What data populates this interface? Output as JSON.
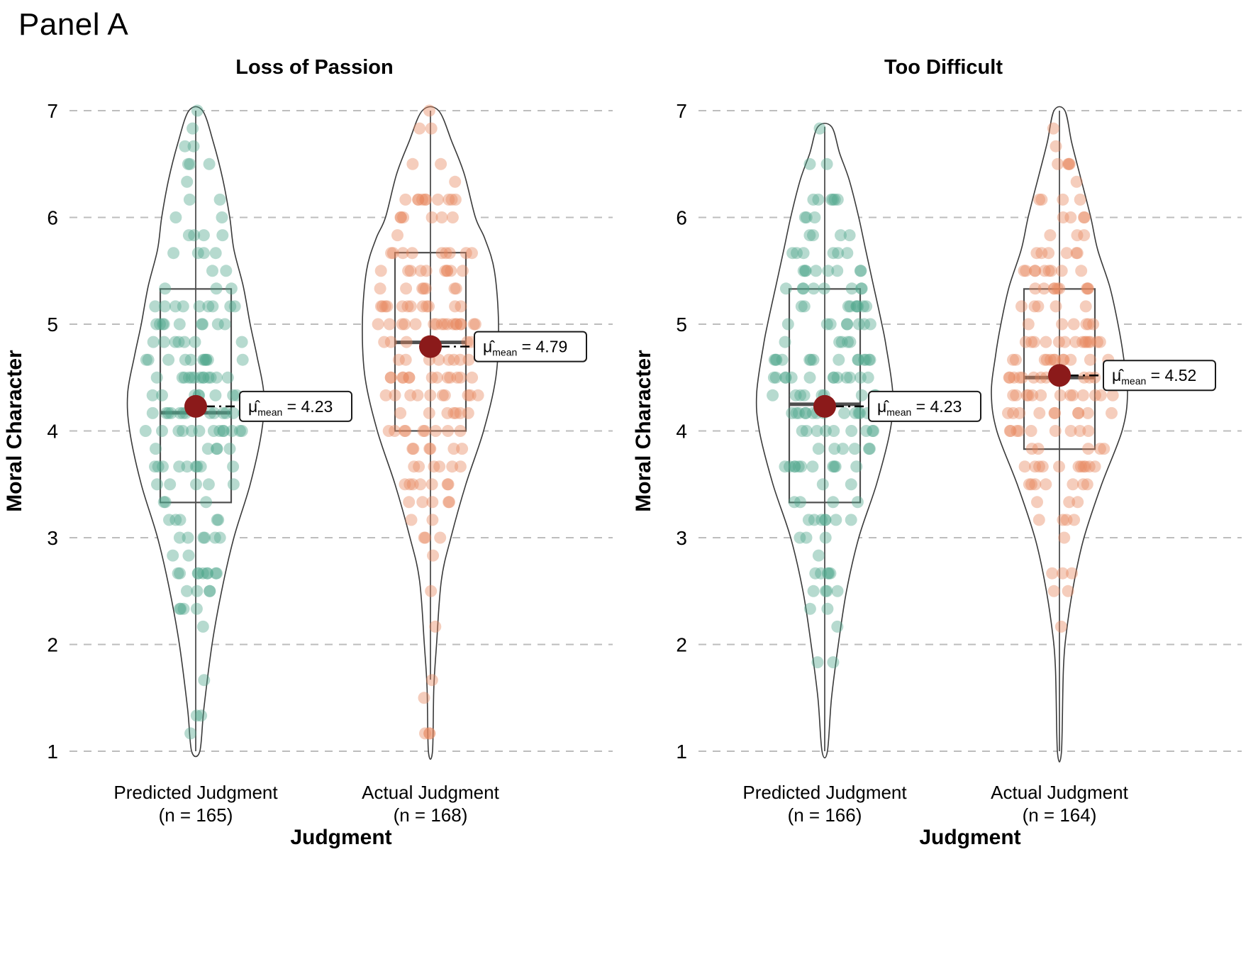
{
  "chart_data": {
    "type": "violin",
    "title": "Panel A",
    "xlabel": "Judgment",
    "ylabel": "Moral Character",
    "ylim": [
      1,
      7
    ],
    "yticks": [
      1,
      2,
      3,
      4,
      5,
      6,
      7
    ],
    "grid": "dashed-horizontal",
    "legend": "none",
    "mean_color": "#8b1a1a",
    "style": {
      "violin_stroke": "#3a3a3a",
      "box_stroke": "#4f4f4f",
      "grid_color": "#bdbdbd",
      "label_box_border": "#1a1a1a",
      "point_opacity": 0.42,
      "point_radius": 8.5
    },
    "panels": [
      {
        "title": "Loss of Passion",
        "groups": [
          {
            "label": "Predicted Judgment",
            "n_label": "(n = 165)",
            "n": 165,
            "color": "#52a68c",
            "mean": 4.23,
            "mean_label": {
              "mu": "μ̂",
              "sub": "mean",
              "value": " = 4.23"
            },
            "box": {
              "q1": 3.33,
              "median": 4.17,
              "q3": 5.33
            },
            "range": [
              1,
              7
            ],
            "whiskers": [
              1,
              7
            ],
            "density": [
              [
                1,
                0.06
              ],
              [
                1.4,
                0.12
              ],
              [
                2,
                0.24
              ],
              [
                2.5,
                0.38
              ],
              [
                3,
                0.56
              ],
              [
                3.5,
                0.8
              ],
              [
                4,
                0.97
              ],
              [
                4.35,
                1.0
              ],
              [
                4.7,
                0.9
              ],
              [
                5,
                0.8
              ],
              [
                5.35,
                0.7
              ],
              [
                5.7,
                0.56
              ],
              [
                6,
                0.5
              ],
              [
                6.35,
                0.4
              ],
              [
                6.7,
                0.26
              ],
              [
                7,
                0.1
              ]
            ],
            "seed": 11
          },
          {
            "label": "Actual Judgment",
            "n_label": "(n = 168)",
            "n": 168,
            "color": "#e8895f",
            "mean": 4.79,
            "mean_label": {
              "mu": "μ̂",
              "sub": "mean",
              "value": " = 4.79"
            },
            "box": {
              "q1": 4.0,
              "median": 4.83,
              "q3": 5.67
            },
            "range": [
              1,
              7
            ],
            "whiskers": [
              1.67,
              7
            ],
            "density": [
              [
                1,
                0.03
              ],
              [
                1.6,
                0.05
              ],
              [
                2,
                0.09
              ],
              [
                2.6,
                0.16
              ],
              [
                3,
                0.3
              ],
              [
                3.5,
                0.52
              ],
              [
                4,
                0.78
              ],
              [
                4.5,
                0.96
              ],
              [
                5,
                1.0
              ],
              [
                5.5,
                0.94
              ],
              [
                5.8,
                0.8
              ],
              [
                6,
                0.66
              ],
              [
                6.4,
                0.5
              ],
              [
                6.7,
                0.32
              ],
              [
                7,
                0.12
              ]
            ],
            "seed": 22
          }
        ]
      },
      {
        "title": "Too Difficult",
        "groups": [
          {
            "label": "Predicted Judgment",
            "n_label": "(n = 166)",
            "n": 166,
            "color": "#52a68c",
            "mean": 4.23,
            "mean_label": {
              "mu": "μ̂",
              "sub": "mean",
              "value": " = 4.23"
            },
            "box": {
              "q1": 3.33,
              "median": 4.25,
              "q3": 5.33
            },
            "range": [
              1,
              6.85
            ],
            "whiskers": [
              1,
              6.85
            ],
            "density": [
              [
                1,
                0.04
              ],
              [
                1.5,
                0.1
              ],
              [
                2,
                0.2
              ],
              [
                2.5,
                0.32
              ],
              [
                3,
                0.5
              ],
              [
                3.5,
                0.76
              ],
              [
                4,
                0.96
              ],
              [
                4.35,
                1.0
              ],
              [
                4.8,
                0.9
              ],
              [
                5,
                0.84
              ],
              [
                5.35,
                0.72
              ],
              [
                5.7,
                0.6
              ],
              [
                6,
                0.5
              ],
              [
                6.35,
                0.36
              ],
              [
                6.6,
                0.22
              ],
              [
                6.85,
                0.1
              ]
            ],
            "seed": 33
          },
          {
            "label": "Actual Judgment",
            "n_label": "(n = 164)",
            "n": 164,
            "color": "#e8895f",
            "mean": 4.52,
            "mean_label": {
              "mu": "μ̂",
              "sub": "mean",
              "value": " = 4.52"
            },
            "box": {
              "q1": 3.83,
              "median": 4.5,
              "q3": 5.33
            },
            "range": [
              1,
              7
            ],
            "whiskers": [
              1,
              7
            ],
            "density": [
              [
                1,
                0.03
              ],
              [
                1.8,
                0.06
              ],
              [
                2.2,
                0.12
              ],
              [
                2.6,
                0.22
              ],
              [
                3,
                0.36
              ],
              [
                3.5,
                0.62
              ],
              [
                4,
                0.92
              ],
              [
                4.35,
                1.0
              ],
              [
                4.7,
                0.94
              ],
              [
                5,
                0.86
              ],
              [
                5.35,
                0.74
              ],
              [
                5.7,
                0.56
              ],
              [
                6,
                0.46
              ],
              [
                6.4,
                0.3
              ],
              [
                6.7,
                0.18
              ],
              [
                7,
                0.08
              ]
            ],
            "seed": 44
          }
        ]
      }
    ]
  }
}
